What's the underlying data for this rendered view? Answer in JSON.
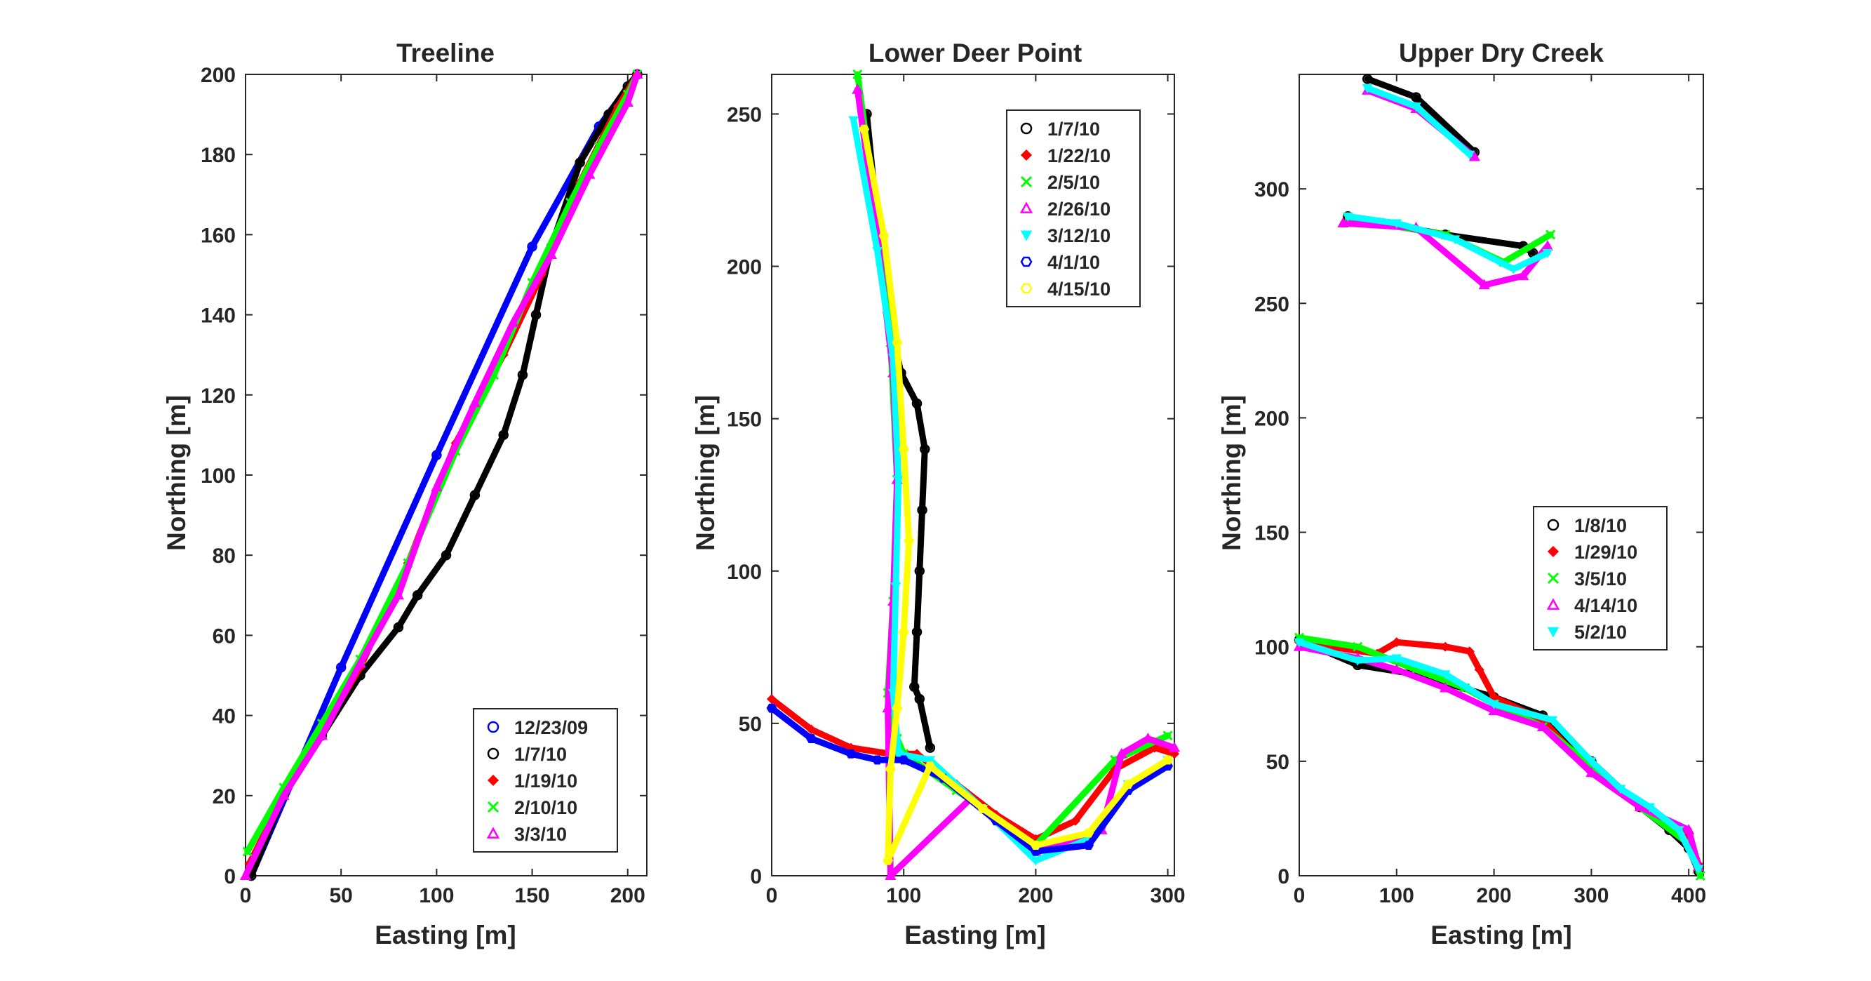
{
  "chart_data": [
    {
      "type": "scatter",
      "title": "Treeline",
      "xlabel": "Easting [m]",
      "ylabel": "Northing [m]",
      "xlim": [
        0,
        210
      ],
      "ylim": [
        0,
        200
      ],
      "xticks": [
        0,
        50,
        100,
        150,
        200
      ],
      "yticks": [
        0,
        20,
        40,
        60,
        80,
        100,
        120,
        140,
        160,
        180,
        200
      ],
      "legend_position": "bottom-right",
      "grid": false,
      "series": [
        {
          "name": "12/23/09",
          "color": "#0000ff",
          "marker": "circle",
          "x": [
            3,
            50,
            100,
            150,
            185,
            205
          ],
          "y": [
            0,
            52,
            105,
            157,
            187,
            200
          ]
        },
        {
          "name": "1/7/10",
          "color": "#000000",
          "marker": "circle",
          "x": [
            3,
            20,
            40,
            60,
            80,
            90,
            105,
            120,
            135,
            145,
            152,
            160,
            175,
            190,
            200,
            205
          ],
          "y": [
            0,
            20,
            35,
            50,
            62,
            70,
            80,
            95,
            110,
            125,
            140,
            157,
            178,
            190,
            197,
            200
          ]
        },
        {
          "name": "1/19/10",
          "color": "#ff0000",
          "marker": "diamond",
          "x": [
            2,
            20,
            40,
            60,
            85,
            110,
            135,
            155,
            175,
            195,
            205
          ],
          "y": [
            3,
            20,
            36,
            52,
            78,
            108,
            130,
            150,
            173,
            192,
            200
          ]
        },
        {
          "name": "2/10/10",
          "color": "#00ff00",
          "marker": "cross",
          "x": [
            1,
            20,
            40,
            60,
            85,
            110,
            130,
            150,
            170,
            185,
            200,
            205
          ],
          "y": [
            6,
            22,
            38,
            54,
            78,
            106,
            125,
            148,
            168,
            182,
            195,
            200
          ]
        },
        {
          "name": "3/3/10",
          "color": "#ff00ff",
          "marker": "triangle",
          "x": [
            0,
            20,
            40,
            60,
            80,
            100,
            120,
            140,
            160,
            180,
            200,
            205
          ],
          "y": [
            0,
            20,
            35,
            53,
            70,
            97,
            118,
            138,
            155,
            175,
            193,
            200
          ]
        }
      ]
    },
    {
      "type": "scatter",
      "title": "Lower Deer Point",
      "xlabel": "Easting [m]",
      "ylabel": "Northing [m]",
      "xlim": [
        0,
        305
      ],
      "ylim": [
        0,
        263
      ],
      "xticks": [
        0,
        100,
        200,
        300
      ],
      "yticks": [
        0,
        50,
        100,
        150,
        200,
        250
      ],
      "legend_position": "top-right",
      "grid": false,
      "series": [
        {
          "name": "1/7/10",
          "color": "#000000",
          "marker": "circle",
          "x": [
            72,
            80,
            88,
            98,
            110,
            116,
            114,
            112,
            110,
            108,
            112,
            120
          ],
          "y": [
            250,
            215,
            185,
            165,
            155,
            140,
            120,
            100,
            80,
            62,
            58,
            42
          ]
        },
        {
          "name": "1/22/10",
          "color": "#ff0000",
          "marker": "diamond",
          "x": [
            0,
            30,
            60,
            90,
            110,
            140,
            170,
            200,
            230,
            260,
            290,
            305
          ],
          "y": [
            58,
            48,
            42,
            40,
            40,
            30,
            20,
            12,
            18,
            35,
            42,
            40
          ]
        },
        {
          "name": "2/5/10",
          "color": "#00ff00",
          "marker": "cross",
          "x": [
            65,
            80,
            90,
            95,
            92,
            88,
            90,
            95,
            100,
            140,
            200,
            260,
            300
          ],
          "y": [
            263,
            215,
            175,
            130,
            90,
            60,
            48,
            45,
            40,
            28,
            10,
            38,
            46
          ]
        },
        {
          "name": "2/26/10",
          "color": "#ff00ff",
          "marker": "triangle",
          "x": [
            65,
            80,
            92,
            95,
            92,
            88,
            90,
            150,
            200,
            250,
            265,
            285,
            305
          ],
          "y": [
            258,
            210,
            165,
            130,
            90,
            55,
            0,
            25,
            8,
            15,
            40,
            45,
            42
          ]
        },
        {
          "name": "3/12/10",
          "color": "#00ffff",
          "marker": "triangle-down",
          "x": [
            62,
            80,
            92,
            96,
            94,
            92,
            96,
            120,
            160,
            200,
            240,
            270,
            300
          ],
          "y": [
            248,
            205,
            170,
            130,
            95,
            60,
            40,
            38,
            22,
            5,
            12,
            30,
            38
          ]
        },
        {
          "name": "4/1/10",
          "color": "#0000ff",
          "marker": "hexagon",
          "x": [
            0,
            30,
            60,
            80,
            100,
            130,
            170,
            200,
            240,
            270,
            300
          ],
          "y": [
            55,
            45,
            40,
            38,
            38,
            32,
            18,
            8,
            10,
            28,
            36
          ]
        },
        {
          "name": "4/15/10",
          "color": "#ffff00",
          "marker": "hexagon",
          "x": [
            70,
            85,
            95,
            100,
            104,
            100,
            95,
            90,
            88,
            120,
            160,
            200,
            240,
            270,
            300
          ],
          "y": [
            245,
            210,
            175,
            140,
            110,
            80,
            55,
            35,
            5,
            36,
            22,
            10,
            14,
            30,
            38
          ]
        }
      ]
    },
    {
      "type": "scatter",
      "title": "Upper Dry Creek",
      "xlabel": "Easting [m]",
      "ylabel": "Northing [m]",
      "xlim": [
        0,
        415
      ],
      "ylim": [
        0,
        350
      ],
      "xticks": [
        0,
        100,
        200,
        300,
        400
      ],
      "yticks": [
        0,
        50,
        100,
        150,
        200,
        250,
        300
      ],
      "legend_position": "middle-right",
      "grid": false,
      "series": [
        {
          "name": "1/8/10",
          "color": "#000000",
          "marker": "circle",
          "x": [
            0,
            60,
            120,
            200,
            250,
            300,
            350,
            380,
            400,
            410
          ],
          "y": [
            103,
            92,
            88,
            78,
            70,
            50,
            30,
            20,
            12,
            2
          ]
        },
        {
          "name": "1/29/10",
          "color": "#ff0000",
          "marker": "diamond",
          "x": [
            0,
            80,
            100,
            150,
            175,
            185,
            200,
            250,
            300,
            350,
            400,
            410
          ],
          "y": [
            102,
            97,
            102,
            100,
            98,
            90,
            78,
            68,
            45,
            30,
            18,
            5
          ]
        },
        {
          "name": "3/5/10",
          "color": "#00ff00",
          "marker": "cross",
          "x": [
            0,
            60,
            120,
            170,
            200,
            250,
            300,
            350,
            400,
            412
          ],
          "y": [
            104,
            100,
            90,
            82,
            75,
            65,
            48,
            30,
            14,
            0
          ]
        },
        {
          "name": "4/14/10",
          "color": "#ff00ff",
          "marker": "triangle",
          "x": [
            0,
            60,
            100,
            150,
            200,
            250,
            300,
            350,
            400,
            410
          ],
          "y": [
            100,
            95,
            90,
            82,
            72,
            65,
            45,
            30,
            20,
            4
          ]
        },
        {
          "name": "5/2/10",
          "color": "#00ffff",
          "marker": "triangle-down",
          "x": [
            0,
            60,
            100,
            150,
            200,
            260,
            300,
            330,
            360,
            390,
            410
          ],
          "y": [
            102,
            94,
            95,
            88,
            75,
            68,
            50,
            38,
            30,
            20,
            3
          ]
        }
      ],
      "extra_segments": [
        {
          "series": "1/8/10",
          "x": [
            70,
            120,
            180
          ],
          "y": [
            348,
            340,
            316
          ]
        },
        {
          "series": "4/14/10",
          "x": [
            70,
            120,
            180
          ],
          "y": [
            343,
            335,
            314
          ]
        },
        {
          "series": "5/2/10",
          "x": [
            70,
            120,
            175
          ],
          "y": [
            344,
            336,
            315
          ]
        },
        {
          "series": "1/8/10",
          "x": [
            50,
            150,
            230,
            240
          ],
          "y": [
            288,
            280,
            275,
            272
          ]
        },
        {
          "series": "3/5/10",
          "x": [
            50,
            150,
            210,
            258
          ],
          "y": [
            287,
            280,
            268,
            280
          ]
        },
        {
          "series": "4/14/10",
          "x": [
            45,
            120,
            190,
            230,
            255
          ],
          "y": [
            285,
            283,
            258,
            262,
            275
          ]
        },
        {
          "series": "5/2/10",
          "x": [
            50,
            100,
            160,
            220,
            255
          ],
          "y": [
            288,
            285,
            278,
            265,
            272
          ]
        }
      ]
    }
  ]
}
